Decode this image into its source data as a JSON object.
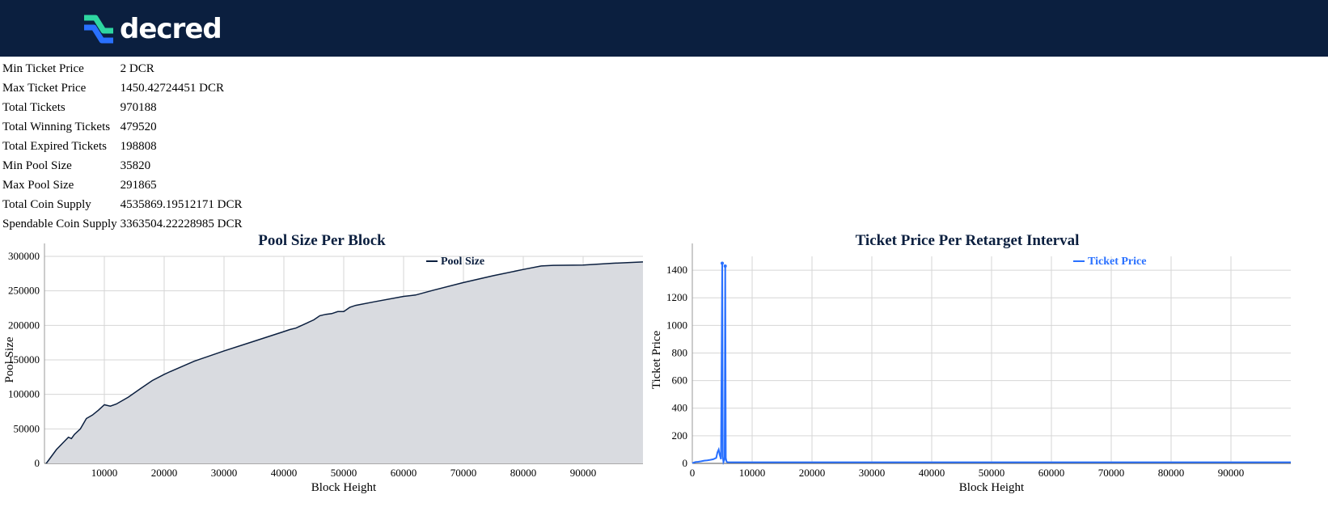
{
  "header": {
    "logo_text": "decred",
    "logo_icon": "decred-logo-icon",
    "background": "#0b1f3f"
  },
  "stats": [
    {
      "label": "Min Ticket Price",
      "value": "2 DCR"
    },
    {
      "label": "Max Ticket Price",
      "value": "1450.42724451 DCR"
    },
    {
      "label": "Total Tickets",
      "value": "970188"
    },
    {
      "label": "Total Winning Tickets",
      "value": "479520"
    },
    {
      "label": "Total Expired Tickets",
      "value": "198808"
    },
    {
      "label": "Min Pool Size",
      "value": "35820"
    },
    {
      "label": "Max Pool Size",
      "value": "291865"
    },
    {
      "label": "Total Coin Supply",
      "value": "4535869.19512171 DCR"
    },
    {
      "label": "Spendable Coin Supply",
      "value": "3363504.22228985 DCR"
    }
  ],
  "chart_data": [
    {
      "type": "area",
      "title": "Pool Size Per Block",
      "xlabel": "Block Height",
      "ylabel": "Pool Size",
      "xlim": [
        0,
        100000
      ],
      "ylim": [
        0,
        300000
      ],
      "xticks": [
        10000,
        20000,
        30000,
        40000,
        50000,
        60000,
        70000,
        80000,
        90000
      ],
      "yticks": [
        0,
        50000,
        100000,
        150000,
        200000,
        250000,
        300000
      ],
      "grid": true,
      "legend_position": "top-right",
      "color": "#0b1f3f",
      "fill": "#d9dbe0",
      "series": [
        {
          "name": "Pool Size",
          "x": [
            300,
            2000,
            4000,
            4500,
            5000,
            6000,
            7000,
            8000,
            9000,
            10000,
            11000,
            12000,
            14000,
            16000,
            18000,
            20000,
            21000,
            25000,
            30000,
            35000,
            40000,
            41000,
            42000,
            43000,
            44000,
            45000,
            46000,
            47000,
            48000,
            49000,
            50000,
            51000,
            52000,
            55000,
            60000,
            62000,
            65000,
            70000,
            75000,
            80000,
            83000,
            85000,
            90000,
            95000,
            100000
          ],
          "y": [
            0,
            20000,
            38000,
            36000,
            42000,
            50000,
            65000,
            70000,
            77000,
            85000,
            83000,
            86000,
            96000,
            108000,
            120000,
            129000,
            133000,
            148000,
            163000,
            177000,
            191000,
            194000,
            196000,
            200000,
            204000,
            208000,
            214000,
            216000,
            217000,
            220000,
            220000,
            226000,
            229000,
            234000,
            242000,
            244000,
            251000,
            262000,
            272000,
            281000,
            286000,
            287000,
            287500,
            290000,
            291865
          ]
        }
      ]
    },
    {
      "type": "line",
      "title": "Ticket Price Per Retarget Interval",
      "xlabel": "Block Height",
      "ylabel": "Ticket Price",
      "xlim": [
        0,
        100000
      ],
      "ylim": [
        0,
        1500
      ],
      "xticks": [
        0,
        10000,
        20000,
        30000,
        40000,
        50000,
        60000,
        70000,
        80000,
        90000
      ],
      "yticks": [
        0,
        200,
        400,
        600,
        800,
        1000,
        1200,
        1400
      ],
      "grid": true,
      "legend_position": "top-right",
      "color": "#2970ff",
      "series": [
        {
          "name": "Ticket Price",
          "x": [
            0,
            500,
            1000,
            1500,
            2000,
            2500,
            3000,
            3500,
            4000,
            4200,
            4400,
            4600,
            4800,
            5000,
            5100,
            5200,
            5300,
            5400,
            5500,
            5600,
            5700,
            5800,
            6000,
            8000,
            20000,
            40000,
            60000,
            80000,
            100000
          ],
          "y": [
            2,
            10,
            12,
            15,
            20,
            22,
            26,
            30,
            40,
            80,
            100,
            60,
            30,
            1450,
            50,
            10,
            20,
            30,
            1430,
            40,
            15,
            10,
            8,
            8,
            8,
            8,
            8,
            8,
            8
          ]
        }
      ]
    }
  ]
}
